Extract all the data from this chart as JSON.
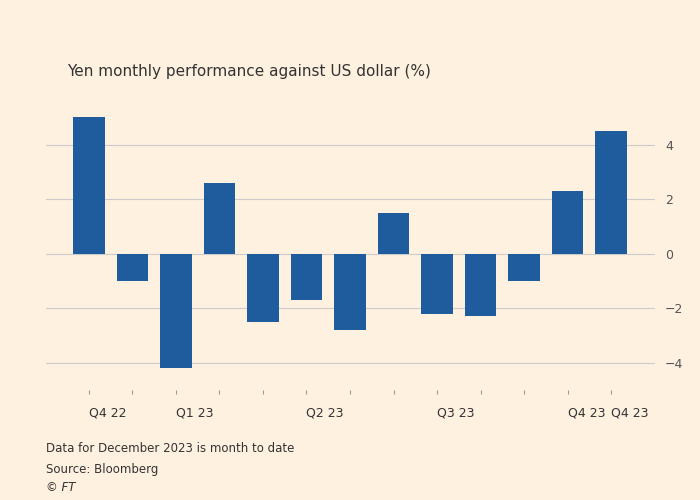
{
  "title": "Yen monthly performance against US dollar (%)",
  "values": [
    5.0,
    -1.0,
    -4.2,
    2.6,
    -2.5,
    -1.7,
    -2.8,
    1.5,
    -2.2,
    -2.3,
    -1.0,
    2.3,
    4.5
  ],
  "bar_color": "#1f5c9e",
  "ylim": [
    -5.0,
    6.0
  ],
  "yticks": [
    -4,
    -2,
    0,
    2,
    4
  ],
  "quarter_labels": [
    "Q4 22",
    "Q1 23",
    "Q2 23",
    "Q3 23",
    "Q4 23",
    "Q4 23"
  ],
  "quarter_x": [
    0,
    2,
    5,
    8,
    11,
    12
  ],
  "footnote1": "Data for December 2023 is month to date",
  "footnote2": "Source: Bloomberg",
  "footnote3": "© FT",
  "background_color": "#FFF1E0",
  "grid_color": "#cccccc",
  "tick_color": "#999999",
  "label_color": "#333333",
  "title_fontsize": 11,
  "label_fontsize": 9,
  "footnote_fontsize": 8.5
}
